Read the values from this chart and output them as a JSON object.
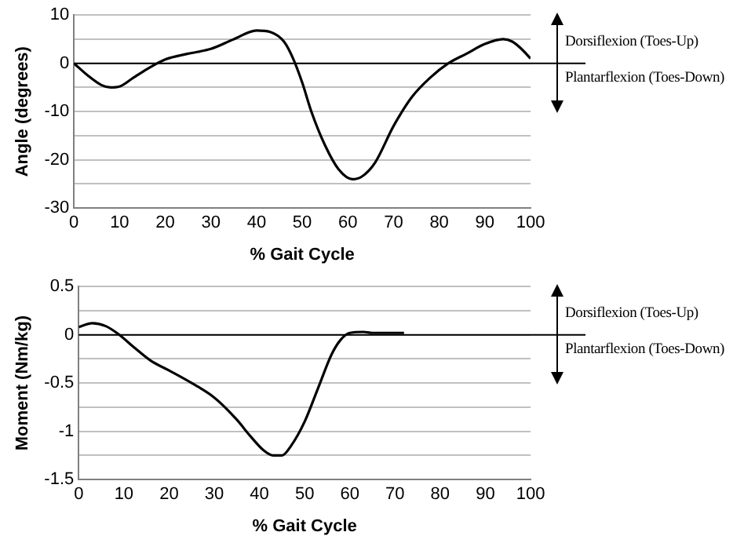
{
  "chart_data": [
    {
      "type": "line",
      "ylabel": "Angle (degrees)",
      "xlabel": "% Gait Cycle",
      "annotations": [
        "Dorsiflexion (Toes-Up)",
        "Plantarflexion (Toes-Down)"
      ],
      "series": [
        {
          "color": "#000000",
          "x": [
            0,
            3,
            6,
            8,
            10,
            13,
            16,
            20,
            25,
            30,
            35,
            40,
            43,
            46,
            48,
            50,
            52,
            55,
            58,
            61,
            63,
            66,
            70,
            74,
            78,
            82,
            86,
            90,
            94,
            96,
            98,
            100
          ],
          "values": [
            0,
            -2.5,
            -4.5,
            -5,
            -4.8,
            -3,
            -1.2,
            0.8,
            2,
            3,
            5,
            6.8,
            6.5,
            4.5,
            1,
            -4,
            -10,
            -17,
            -22,
            -24,
            -23.5,
            -20.5,
            -13,
            -7,
            -3,
            0,
            2,
            4,
            5,
            4.5,
            3,
            1
          ]
        }
      ],
      "xlim": [
        0,
        100
      ],
      "xticks": [
        0,
        10,
        20,
        30,
        40,
        50,
        60,
        70,
        80,
        90,
        100
      ],
      "ylim": [
        -30,
        10
      ],
      "yticks": [
        -30,
        {
          "value": -25,
          "label": null
        },
        -20,
        {
          "value": -15,
          "label": null
        },
        -10,
        {
          "value": -5,
          "label": null
        },
        0,
        {
          "value": 5,
          "label": null
        },
        10
      ],
      "grid": "y",
      "legend": false,
      "marker": "none",
      "line_style": "solid",
      "ref_lines": [
        {
          "axis": "y",
          "value": 0,
          "color": "#000000"
        }
      ]
    },
    {
      "type": "line",
      "ylabel": "Moment (Nm/kg)",
      "xlabel": "% Gait Cycle",
      "annotations": [
        "Dorsiflexion (Toes-Up)",
        "Plantarflexion (Toes-Down)"
      ],
      "series": [
        {
          "color": "#000000",
          "x": [
            0,
            3,
            6,
            9,
            12,
            16,
            20,
            25,
            30,
            35,
            38,
            41,
            43,
            45,
            47,
            50,
            53,
            56,
            58,
            60,
            63,
            65,
            72
          ],
          "values": [
            0.08,
            0.12,
            0.09,
            0,
            -0.12,
            -0.27,
            -0.37,
            -0.5,
            -0.65,
            -0.88,
            -1.05,
            -1.2,
            -1.25,
            -1.25,
            -1.15,
            -0.9,
            -0.55,
            -0.2,
            -0.05,
            0.02,
            0.03,
            0.02,
            0.02
          ]
        }
      ],
      "xlim": [
        0,
        100
      ],
      "xticks": [
        0,
        10,
        20,
        30,
        40,
        50,
        60,
        70,
        80,
        90,
        100
      ],
      "ylim": [
        -1.5,
        0.5
      ],
      "yticks": [
        -1.5,
        {
          "value": -1.25,
          "label": null
        },
        -1,
        {
          "value": -0.75,
          "label": null
        },
        -0.5,
        {
          "value": -0.25,
          "label": null
        },
        0,
        {
          "value": 0.25,
          "label": null
        },
        0.5
      ],
      "grid": "y",
      "legend": false,
      "marker": "none",
      "line_style": "solid",
      "ref_lines": [
        {
          "axis": "y",
          "value": 0,
          "color": "#000000"
        }
      ]
    }
  ]
}
